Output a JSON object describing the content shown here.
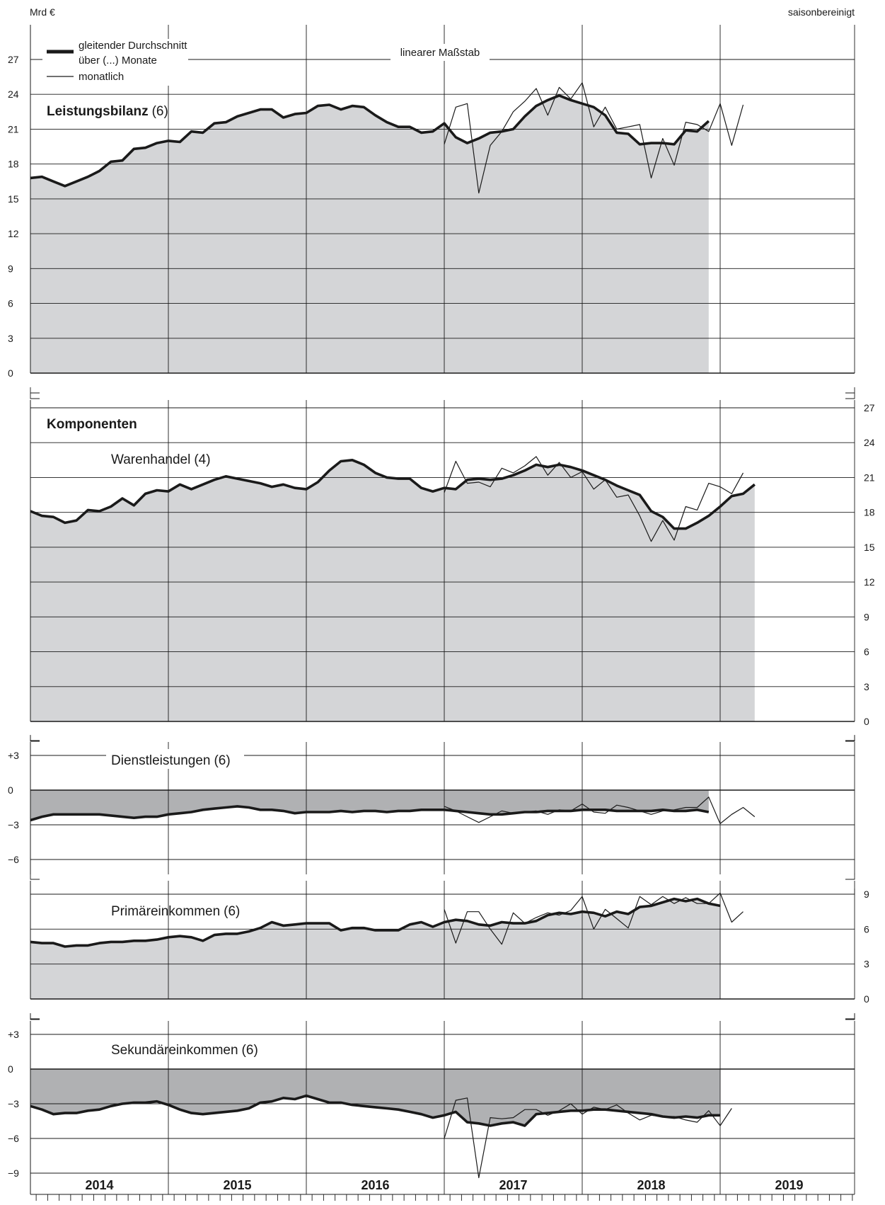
{
  "header": {
    "unit": "Mrd €",
    "adjustment": "saisonbereinigt",
    "scale_note": "linearer Maßstab"
  },
  "legend": {
    "avg_line1": "gleitender Durchschnitt",
    "avg_line2": "über (...) Monate",
    "monthly": "monatlich"
  },
  "section_title": "Komponenten",
  "years": [
    "2014",
    "2015",
    "2016",
    "2017",
    "2018",
    "2019"
  ],
  "colors": {
    "fill_light": "#d4d5d7",
    "fill_dark": "#b0b1b3",
    "line": "#1a1a1a",
    "grid": "#1a1a1a"
  },
  "chart_data": [
    {
      "type": "line",
      "title": "Leistungsbilanz",
      "title_suffix": "(6)",
      "ylim": [
        0,
        29
      ],
      "yticks": [
        "0",
        "3",
        "6",
        "9",
        "12",
        "15",
        "18",
        "21",
        "24",
        "27"
      ],
      "x_start": "2014-01",
      "series": [
        {
          "name": "gleitender Durchschnitt",
          "values": [
            16.8,
            16.9,
            16.5,
            16.1,
            16.5,
            16.9,
            17.4,
            18.2,
            18.3,
            19.3,
            19.4,
            19.8,
            20.0,
            19.9,
            20.8,
            20.7,
            21.5,
            21.6,
            22.1,
            22.4,
            22.7,
            22.7,
            22.0,
            22.3,
            22.4,
            23.0,
            23.1,
            22.7,
            23.0,
            22.9,
            22.2,
            21.6,
            21.2,
            21.2,
            20.7,
            20.8,
            21.5,
            20.3,
            19.8,
            20.2,
            20.7,
            20.8,
            21.0,
            22.1,
            23.0,
            23.5,
            23.9,
            23.5,
            23.2,
            22.9,
            22.2,
            20.7,
            20.6,
            19.7,
            19.8,
            19.8,
            19.7,
            20.9,
            20.8,
            21.7
          ]
        },
        {
          "name": "monatlich",
          "x_start": "2017-01",
          "values": [
            19.7,
            22.9,
            23.2,
            15.5,
            19.6,
            20.8,
            22.5,
            23.4,
            24.5,
            22.2,
            24.6,
            23.6,
            25.0,
            21.2,
            22.9,
            21.0,
            21.2,
            21.4,
            16.8,
            20.2,
            17.9,
            21.6,
            21.4,
            20.8,
            23.2,
            19.6,
            23.1
          ]
        }
      ]
    },
    {
      "type": "line",
      "title": "Warenhandel",
      "title_suffix": "(4)",
      "ylim": [
        0,
        29
      ],
      "yticks": [
        "0",
        "3",
        "6",
        "9",
        "12",
        "15",
        "18",
        "21",
        "24",
        "27"
      ],
      "x_start": "2014-01",
      "series": [
        {
          "name": "gleitender Durchschnitt",
          "values": [
            18.1,
            17.7,
            17.6,
            17.1,
            17.3,
            18.2,
            18.1,
            18.5,
            19.2,
            18.6,
            19.6,
            19.9,
            19.8,
            20.4,
            20.0,
            20.4,
            20.8,
            21.1,
            20.9,
            20.7,
            20.5,
            20.2,
            20.4,
            20.1,
            20.0,
            20.6,
            21.6,
            22.4,
            22.5,
            22.1,
            21.4,
            21.0,
            20.9,
            20.9,
            20.1,
            19.8,
            20.1,
            20.0,
            20.8,
            20.9,
            20.8,
            20.9,
            21.2,
            21.6,
            22.1,
            21.9,
            22.1,
            21.9,
            21.6,
            21.2,
            20.8,
            20.3,
            19.9,
            19.5,
            18.1,
            17.6,
            16.6,
            16.6,
            17.1,
            17.7,
            18.5,
            19.4,
            19.6,
            20.4
          ]
        },
        {
          "name": "monatlich",
          "x_start": "2017-01",
          "values": [
            19.7,
            22.4,
            20.5,
            20.6,
            20.2,
            21.8,
            21.4,
            22.0,
            22.8,
            21.2,
            22.3,
            21.0,
            21.5,
            20.0,
            20.8,
            19.3,
            19.5,
            17.7,
            15.5,
            17.3,
            15.6,
            18.5,
            18.2,
            20.5,
            20.2,
            19.6,
            21.4
          ]
        }
      ]
    },
    {
      "type": "line",
      "title": "Dienstleistungen",
      "title_suffix": "(6)",
      "ylim": [
        -7,
        4
      ],
      "yticks": [
        "−6",
        "−3",
        "0",
        "+3"
      ],
      "x_start": "2014-01",
      "series": [
        {
          "name": "gleitender Durchschnitt",
          "values": [
            -2.6,
            -2.3,
            -2.1,
            -2.1,
            -2.1,
            -2.1,
            -2.1,
            -2.2,
            -2.3,
            -2.4,
            -2.3,
            -2.3,
            -2.1,
            -2.0,
            -1.9,
            -1.7,
            -1.6,
            -1.5,
            -1.4,
            -1.5,
            -1.7,
            -1.7,
            -1.8,
            -2.0,
            -1.9,
            -1.9,
            -1.9,
            -1.8,
            -1.9,
            -1.8,
            -1.8,
            -1.9,
            -1.8,
            -1.8,
            -1.7,
            -1.7,
            -1.7,
            -1.8,
            -1.9,
            -2.0,
            -2.1,
            -2.1,
            -2.0,
            -1.9,
            -1.9,
            -1.8,
            -1.8,
            -1.8,
            -1.7,
            -1.7,
            -1.7,
            -1.8,
            -1.8,
            -1.8,
            -1.8,
            -1.7,
            -1.8,
            -1.8,
            -1.7,
            -1.9
          ]
        },
        {
          "name": "monatlich",
          "x_start": "2017-01",
          "values": [
            -1.4,
            -1.8,
            -2.3,
            -2.8,
            -2.3,
            -1.8,
            -2.0,
            -1.9,
            -1.8,
            -2.1,
            -1.7,
            -1.8,
            -1.2,
            -1.9,
            -2.0,
            -1.3,
            -1.5,
            -1.8,
            -2.1,
            -1.8,
            -1.7,
            -1.5,
            -1.5,
            -0.6,
            -2.9,
            -2.1,
            -1.5,
            -2.3
          ]
        }
      ]
    },
    {
      "type": "line",
      "title": "Primäreinkommen",
      "title_suffix": "(6)",
      "ylim": [
        0,
        10
      ],
      "yticks": [
        "0",
        "3",
        "6",
        "9"
      ],
      "x_start": "2014-01",
      "series": [
        {
          "name": "gleitender Durchschnitt",
          "values": [
            4.9,
            4.8,
            4.8,
            4.5,
            4.6,
            4.6,
            4.8,
            4.9,
            4.9,
            5.0,
            5.0,
            5.1,
            5.3,
            5.4,
            5.3,
            5.0,
            5.5,
            5.6,
            5.6,
            5.8,
            6.1,
            6.6,
            6.3,
            6.4,
            6.5,
            6.5,
            6.5,
            5.9,
            6.1,
            6.1,
            5.9,
            5.9,
            5.9,
            6.4,
            6.6,
            6.2,
            6.6,
            6.8,
            6.7,
            6.4,
            6.3,
            6.6,
            6.5,
            6.5,
            6.7,
            7.2,
            7.4,
            7.3,
            7.5,
            7.4,
            7.1,
            7.5,
            7.3,
            7.9,
            8.0,
            8.3,
            8.6,
            8.4,
            8.6,
            8.2,
            8.0
          ]
        },
        {
          "name": "monatlich",
          "x_start": "2017-01",
          "values": [
            7.7,
            4.8,
            7.5,
            7.5,
            6.0,
            4.7,
            7.4,
            6.5,
            7.0,
            7.4,
            7.2,
            7.6,
            8.8,
            6.0,
            7.7,
            6.9,
            6.1,
            8.8,
            8.1,
            8.8,
            8.2,
            8.7,
            8.2,
            8.2,
            9.1,
            6.6,
            7.5
          ]
        }
      ]
    },
    {
      "type": "line",
      "title": "Sekundäreinkommen",
      "title_suffix": "(6)",
      "ylim": [
        -11,
        4
      ],
      "yticks": [
        "−9",
        "−6",
        "−3",
        "0",
        "+3"
      ],
      "x_start": "2014-01",
      "series": [
        {
          "name": "gleitender Durchschnitt",
          "values": [
            -3.2,
            -3.5,
            -3.9,
            -3.8,
            -3.8,
            -3.6,
            -3.5,
            -3.2,
            -3.0,
            -2.9,
            -2.9,
            -2.8,
            -3.1,
            -3.5,
            -3.8,
            -3.9,
            -3.8,
            -3.7,
            -3.6,
            -3.4,
            -2.9,
            -2.8,
            -2.5,
            -2.6,
            -2.3,
            -2.6,
            -2.9,
            -2.9,
            -3.1,
            -3.2,
            -3.3,
            -3.4,
            -3.5,
            -3.7,
            -3.9,
            -4.2,
            -4.0,
            -3.7,
            -4.6,
            -4.7,
            -4.9,
            -4.7,
            -4.6,
            -4.9,
            -3.9,
            -3.8,
            -3.7,
            -3.6,
            -3.6,
            -3.5,
            -3.5,
            -3.6,
            -3.7,
            -3.8,
            -3.9,
            -4.1,
            -4.2,
            -4.1,
            -4.2,
            -4.0,
            -4.0
          ]
        },
        {
          "name": "monatlich",
          "x_start": "2017-01",
          "values": [
            -6.0,
            -2.7,
            -2.5,
            -9.4,
            -4.2,
            -4.3,
            -4.2,
            -3.5,
            -3.5,
            -4.0,
            -3.6,
            -3.0,
            -3.9,
            -3.3,
            -3.5,
            -3.1,
            -3.8,
            -4.4,
            -4.0,
            -4.1,
            -4.1,
            -4.4,
            -4.6,
            -3.6,
            -4.9,
            -3.4
          ]
        }
      ]
    }
  ]
}
